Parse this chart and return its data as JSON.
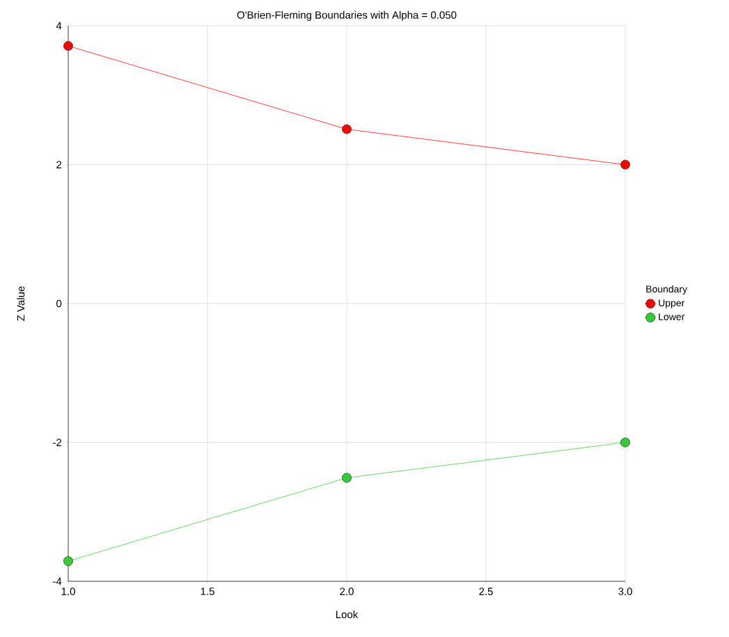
{
  "chart_data": {
    "type": "line",
    "title": "O'Brien-Fleming Boundaries with Alpha = 0.050",
    "xlabel": "Look",
    "ylabel": "Z Value",
    "legend_title": "Boundary",
    "x": [
      1,
      2,
      3
    ],
    "series": [
      {
        "name": "Upper",
        "color": "#ff0000",
        "values": [
          3.71,
          2.51,
          2.0
        ]
      },
      {
        "name": "Lower",
        "color": "#33cc33",
        "values": [
          -3.71,
          -2.51,
          -2.0
        ]
      }
    ],
    "xlim": [
      1,
      3
    ],
    "ylim": [
      -4,
      4
    ],
    "xticks": [
      {
        "value": 1,
        "label": "1.0"
      },
      {
        "value": 1.5,
        "label": "1.5"
      },
      {
        "value": 2,
        "label": "2.0"
      },
      {
        "value": 2.5,
        "label": "2.5"
      },
      {
        "value": 3,
        "label": "3.0"
      }
    ],
    "yticks": [
      -4,
      -2,
      0,
      2,
      4
    ],
    "grid": true,
    "legend": "right",
    "marker": "circle",
    "line_style": "solid"
  }
}
